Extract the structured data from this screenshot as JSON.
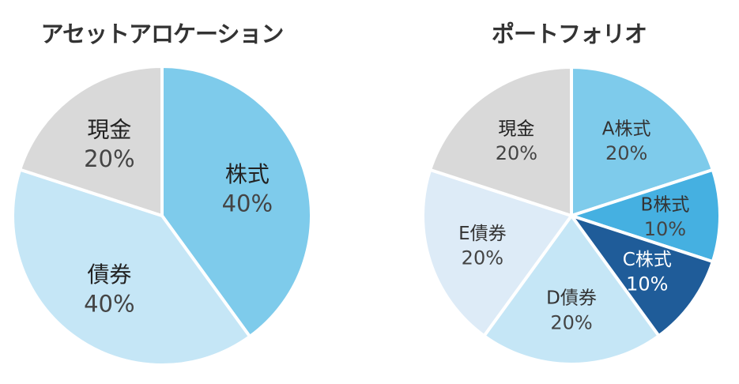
{
  "chart_data": [
    {
      "type": "pie",
      "title": "アセットアロケーション",
      "slices": [
        {
          "label": "株式",
          "value": 40,
          "value_text": "40%",
          "color": "#7ECBEB",
          "text_color": "#222222"
        },
        {
          "label": "債券",
          "value": 40,
          "value_text": "40%",
          "color": "#C5E6F6",
          "text_color": "#222222"
        },
        {
          "label": "現金",
          "value": 20,
          "value_text": "20%",
          "color": "#D9D9D9",
          "text_color": "#222222"
        }
      ]
    },
    {
      "type": "pie",
      "title": "ポートフォリオ",
      "slices": [
        {
          "label": "A株式",
          "value": 20,
          "value_text": "20%",
          "color": "#7ECBEB",
          "text_color": "#333333"
        },
        {
          "label": "B株式",
          "value": 10,
          "value_text": "10%",
          "color": "#45B0E1",
          "text_color": "#333333"
        },
        {
          "label": "C株式",
          "value": 10,
          "value_text": "10%",
          "color": "#1F5C99",
          "text_color": "#FFFFFF"
        },
        {
          "label": "D債券",
          "value": 20,
          "value_text": "20%",
          "color": "#C5E6F6",
          "text_color": "#333333"
        },
        {
          "label": "E債券",
          "value": 20,
          "value_text": "20%",
          "color": "#DDEBF7",
          "text_color": "#333333"
        },
        {
          "label": "現金",
          "value": 20,
          "value_text": "20%",
          "color": "#D9D9D9",
          "text_color": "#222222"
        }
      ]
    }
  ]
}
